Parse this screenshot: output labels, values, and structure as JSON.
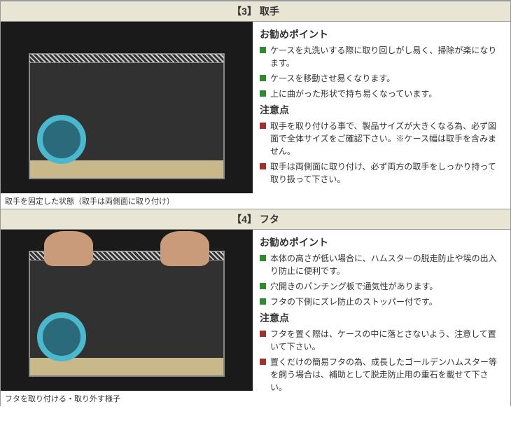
{
  "sections": [
    {
      "header": "【3】 取手",
      "img_class": "img3",
      "caption": "取手を固定した状態（取手は両側面に取り付け）",
      "rec_heading": "お勧めポイント",
      "rec": [
        "ケースを丸洗いする際に取り回しがし易く、掃除が楽になります。",
        "ケースを移動させ易くなります。",
        "上に曲がった形状で持ち易くなっています。"
      ],
      "warn_heading": "注意点",
      "warn": [
        "取手を取り付ける事で、製品サイズが大きくなる為、必ず図面で全体サイズをご確認下さい。※ケース幅は取手を含みません。",
        "取手は両側面に取り付け、必ず両方の取手をしっかり持って取り扱って下さい。"
      ],
      "show_hands": false
    },
    {
      "header": "【4】 フタ",
      "img_class": "img4",
      "caption": "フタを取り付ける・取り外す様子",
      "rec_heading": "お勧めポイント",
      "rec": [
        "本体の高さが低い場合に、ハムスターの脱走防止や埃の出入り防止に便利です。",
        "穴開きのパンチング板で通気性があります。",
        "フタの下側にズレ防止のストッパー付です。"
      ],
      "warn_heading": "注意点",
      "warn": [
        "フタを置く際は、ケースの中に落とさないよう、注意して置いて下さい。",
        "置くだけの簡易フタの為、成長したゴールデンハムスター等を飼う場合は、補助として脱走防止用の重石を載せて下さい。"
      ],
      "show_hands": true
    }
  ],
  "colors": {
    "header_bg": "#e8e5d5",
    "rec_bullet": "#2e8b2e",
    "warn_bullet": "#a03030"
  }
}
